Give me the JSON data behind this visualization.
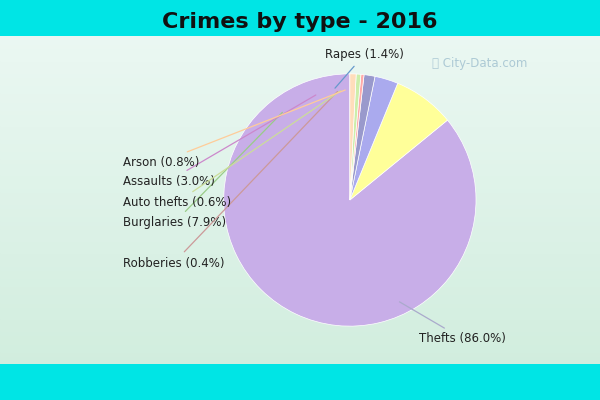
{
  "title": "Crimes by type - 2016",
  "labels": [
    "Thefts",
    "Burglaries",
    "Assaults",
    "Rapes",
    "Robberies",
    "Auto thefts",
    "Arson"
  ],
  "values": [
    86.0,
    7.9,
    3.0,
    1.4,
    0.4,
    0.6,
    0.8
  ],
  "colors": [
    "#c8aee8",
    "#ffff99",
    "#aaaaee",
    "#9999cc",
    "#ffaaaa",
    "#cceeaa",
    "#ffddbb"
  ],
  "line_colors": [
    "#aaaacc",
    "#cccc88",
    "#8888cc",
    "#6688cc",
    "#ffaaaa",
    "#aaccaa",
    "#ffbb88"
  ],
  "background_top": "#00e5e5",
  "title_fontsize": 16,
  "label_fontsize": 8.5,
  "startangle": 90,
  "watermark": "City-Data.com"
}
